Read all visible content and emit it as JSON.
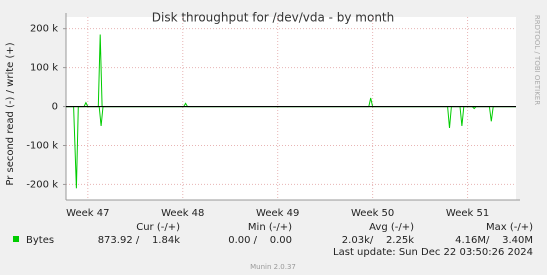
{
  "chart_data": {
    "type": "line",
    "title": "Disk throughput for /dev/vda - by month",
    "ylabel": "Pr second read (-) / write (+)",
    "side_text": "RRDTOOL / TOBI OETIKER",
    "ylim": [
      -240000,
      230000
    ],
    "yticks": [
      {
        "value": 200000,
        "label": "200 k"
      },
      {
        "value": 100000,
        "label": "100 k"
      },
      0,
      {
        "value": -100000,
        "label": "-100 k"
      },
      {
        "value": -200000,
        "label": "-200 k"
      }
    ],
    "xlim": [
      46.77,
      51.51
    ],
    "xticks": [
      {
        "value": 47,
        "label": "Week 47"
      },
      {
        "value": 48,
        "label": "Week 48"
      },
      {
        "value": 49,
        "label": "Week 49"
      },
      {
        "value": 50,
        "label": "Week 50"
      },
      {
        "value": 51,
        "label": "Week 51"
      }
    ],
    "grid": true,
    "series": [
      {
        "name": "Bytes",
        "color": "#00cc00",
        "x": [
          46.77,
          46.83,
          46.96,
          46.98,
          47.0,
          47.11,
          47.13,
          47.15,
          48.01,
          48.03,
          48.05,
          49.96,
          49.98,
          50.0,
          51.51
        ],
        "values": [
          0,
          0,
          0,
          10000,
          0,
          0,
          185000,
          0,
          0,
          8000,
          0,
          0,
          22000,
          0,
          0
        ]
      },
      {
        "color": "#00cc00",
        "x": [
          46.77,
          46.85,
          46.88,
          46.9,
          47.12,
          47.14,
          47.16,
          50.79,
          50.81,
          50.83,
          50.92,
          50.94,
          50.96,
          51.05,
          51.07,
          51.09,
          51.23,
          51.25,
          51.27,
          51.51
        ],
        "values": [
          0,
          0,
          -210000,
          0,
          0,
          -50000,
          0,
          0,
          -55000,
          0,
          0,
          -50000,
          0,
          0,
          -5000,
          0,
          0,
          -38000,
          0,
          0
        ]
      }
    ],
    "legend_table": {
      "headers": [
        "Cur (-/+)",
        "Min (-/+)",
        "Avg (-/+)",
        "Max (-/+)"
      ],
      "row": [
        "873.92 /    1.84k",
        "0.00 /    0.00",
        "2.03k/    2.25k",
        "4.16M/    3.40M"
      ]
    },
    "last_update": "Last update: Sun Dec 22 03:50:26 2024",
    "footer": "Munin 2.0.37"
  }
}
